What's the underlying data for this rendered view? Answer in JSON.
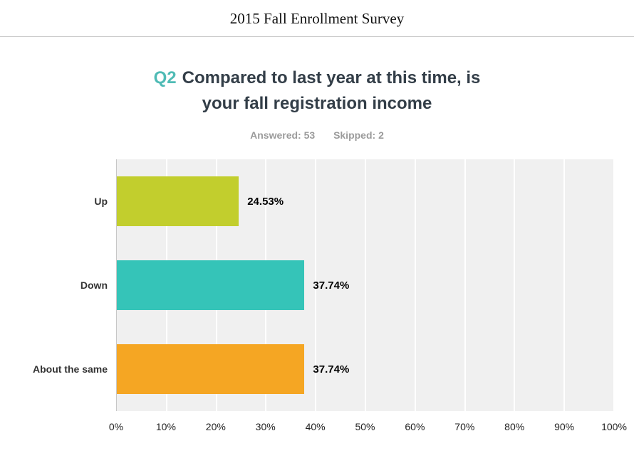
{
  "page": {
    "document_title": "2015 Fall Enrollment Survey"
  },
  "question": {
    "number": "Q2",
    "text_line1": "Compared to last year at this time, is",
    "text_line2": "your fall registration income",
    "answered_label": "Answered: 53",
    "skipped_label": "Skipped: 2"
  },
  "colors": {
    "question_number": "#4fbbb5",
    "title_text": "#333e48",
    "stats_text": "#9b9b9b",
    "plot_background": "#f0f0f0",
    "gridline": "#ffffff",
    "axis_line": "#c7c7c7"
  },
  "chart_data": {
    "type": "bar",
    "orientation": "horizontal",
    "title": "Q2 Compared to last year at this time, is your fall registration income",
    "categories": [
      "Up",
      "Down",
      "About the same"
    ],
    "values": [
      24.53,
      37.74,
      37.74
    ],
    "value_labels": [
      "24.53%",
      "37.74%",
      "37.74%"
    ],
    "bar_colors": [
      "#c2ce2d",
      "#35c4b8",
      "#f5a623"
    ],
    "x_ticks": [
      "0%",
      "10%",
      "20%",
      "30%",
      "40%",
      "50%",
      "60%",
      "70%",
      "80%",
      "90%",
      "100%"
    ],
    "xlim": [
      0,
      100
    ],
    "xlabel": "",
    "ylabel": "",
    "grid": true,
    "legend": false
  }
}
